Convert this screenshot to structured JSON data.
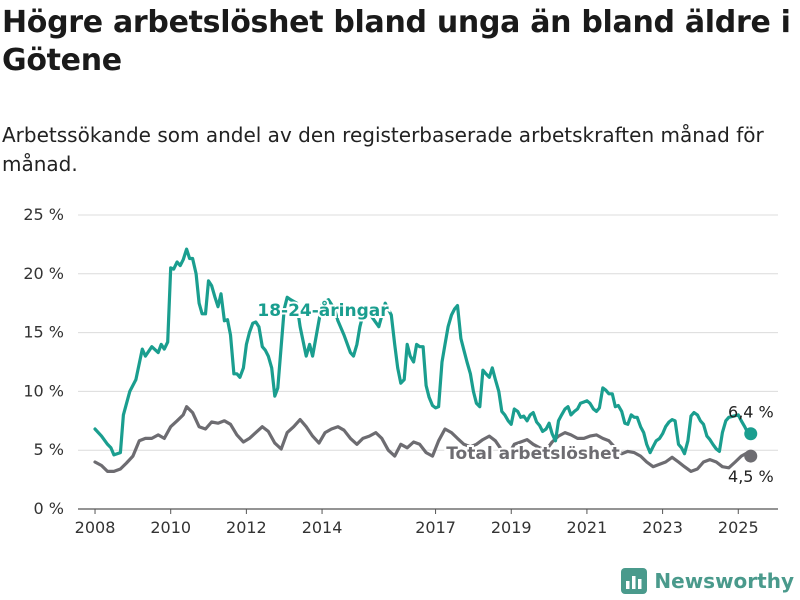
{
  "header": {
    "title": "Högre arbetslöshet bland unga än bland äldre i Götene",
    "subtitle": "Arbetssökande som andel av den registerbaserade arbetskraften månad för månad."
  },
  "brand": {
    "name": "Newsworthy",
    "icon": "bar-chart-logo-icon",
    "color": "#4a9a8c"
  },
  "chart_data": {
    "type": "line",
    "title": "Högre arbetslöshet bland unga än bland äldre i Götene",
    "subtitle": "Arbetssökande som andel av den registerbaserade arbetskraften månad för månad.",
    "ylim": [
      0,
      25
    ],
    "yticks": [
      0,
      5,
      10,
      15,
      20,
      25
    ],
    "ytick_labels": [
      "0 %",
      "5 %",
      "10 %",
      "15 %",
      "20 %",
      "25 %"
    ],
    "xtick_labels": [
      "2008",
      "2010",
      "2012",
      "2014",
      "2017",
      "2019",
      "2021",
      "2023",
      "2025"
    ],
    "xtick_years": [
      2008,
      2010,
      2012,
      2014,
      2017,
      2019,
      2021,
      2023,
      2025
    ],
    "grid": true,
    "legend": "inline labels",
    "x_unit": "year (decimal, monthly)",
    "series": [
      {
        "name": "18-24-åringar",
        "color": "#1a9e8f",
        "end_label": "6,4 %",
        "points": [
          [
            2008.0,
            6.8
          ],
          [
            2008.17,
            6.2
          ],
          [
            2008.33,
            5.5
          ],
          [
            2008.42,
            5.2
          ],
          [
            2008.5,
            4.6
          ],
          [
            2008.67,
            4.8
          ],
          [
            2008.75,
            8.0
          ],
          [
            2008.92,
            10.0
          ],
          [
            2009.08,
            11.0
          ],
          [
            2009.25,
            13.6
          ],
          [
            2009.33,
            13.0
          ],
          [
            2009.5,
            13.8
          ],
          [
            2009.67,
            13.3
          ],
          [
            2009.75,
            14.0
          ],
          [
            2009.83,
            13.6
          ],
          [
            2009.92,
            14.2
          ],
          [
            2010.0,
            20.5
          ],
          [
            2010.08,
            20.4
          ],
          [
            2010.17,
            21.0
          ],
          [
            2010.25,
            20.7
          ],
          [
            2010.33,
            21.2
          ],
          [
            2010.42,
            22.1
          ],
          [
            2010.5,
            21.3
          ],
          [
            2010.58,
            21.3
          ],
          [
            2010.67,
            20.0
          ],
          [
            2010.75,
            17.5
          ],
          [
            2010.83,
            16.6
          ],
          [
            2010.92,
            16.6
          ],
          [
            2011.0,
            19.4
          ],
          [
            2011.08,
            19.0
          ],
          [
            2011.17,
            18.0
          ],
          [
            2011.25,
            17.2
          ],
          [
            2011.33,
            18.3
          ],
          [
            2011.42,
            16.0
          ],
          [
            2011.5,
            16.1
          ],
          [
            2011.58,
            14.8
          ],
          [
            2011.67,
            11.5
          ],
          [
            2011.75,
            11.5
          ],
          [
            2011.83,
            11.2
          ],
          [
            2011.92,
            12.0
          ],
          [
            2012.0,
            14.0
          ],
          [
            2012.08,
            15.0
          ],
          [
            2012.17,
            15.8
          ],
          [
            2012.25,
            15.9
          ],
          [
            2012.33,
            15.5
          ],
          [
            2012.42,
            13.8
          ],
          [
            2012.5,
            13.5
          ],
          [
            2012.58,
            13.0
          ],
          [
            2012.67,
            12.0
          ],
          [
            2012.75,
            9.6
          ],
          [
            2012.83,
            10.3
          ],
          [
            2013.0,
            17.0
          ],
          [
            2013.08,
            18.0
          ],
          [
            2013.17,
            17.8
          ],
          [
            2013.33,
            17.5
          ],
          [
            2013.42,
            15.5
          ],
          [
            2013.58,
            13.0
          ],
          [
            2013.67,
            14.0
          ],
          [
            2013.75,
            13.0
          ],
          [
            2014.0,
            17.5
          ],
          [
            2014.17,
            17.8
          ],
          [
            2014.33,
            17.0
          ],
          [
            2014.42,
            16.0
          ],
          [
            2014.58,
            14.8
          ],
          [
            2014.75,
            13.3
          ],
          [
            2014.83,
            13.0
          ],
          [
            2014.92,
            14.0
          ],
          [
            2015.0,
            15.5
          ],
          [
            2015.08,
            16.5
          ],
          [
            2015.17,
            17.0
          ],
          [
            2015.5,
            15.5
          ],
          [
            2015.67,
            17.5
          ],
          [
            2015.83,
            16.5
          ],
          [
            2015.92,
            14.0
          ],
          [
            2016.0,
            12.0
          ],
          [
            2016.08,
            10.7
          ],
          [
            2016.17,
            11.0
          ],
          [
            2016.25,
            14.0
          ],
          [
            2016.33,
            13.0
          ],
          [
            2016.42,
            12.5
          ],
          [
            2016.5,
            14.0
          ],
          [
            2016.58,
            13.8
          ],
          [
            2016.67,
            13.8
          ],
          [
            2016.75,
            10.5
          ],
          [
            2016.83,
            9.5
          ],
          [
            2016.92,
            8.8
          ],
          [
            2017.0,
            8.6
          ],
          [
            2017.08,
            8.7
          ],
          [
            2017.17,
            12.5
          ],
          [
            2017.25,
            14.0
          ],
          [
            2017.33,
            15.5
          ],
          [
            2017.42,
            16.5
          ],
          [
            2017.5,
            17.0
          ],
          [
            2017.58,
            17.3
          ],
          [
            2017.67,
            14.5
          ],
          [
            2017.75,
            13.5
          ],
          [
            2017.83,
            12.5
          ],
          [
            2017.92,
            11.5
          ],
          [
            2018.0,
            10.0
          ],
          [
            2018.08,
            9.0
          ],
          [
            2018.17,
            8.7
          ],
          [
            2018.25,
            11.8
          ],
          [
            2018.33,
            11.5
          ],
          [
            2018.42,
            11.2
          ],
          [
            2018.5,
            12.0
          ],
          [
            2018.58,
            11.0
          ],
          [
            2018.67,
            10.0
          ],
          [
            2018.75,
            8.3
          ],
          [
            2018.83,
            8.0
          ],
          [
            2018.92,
            7.5
          ],
          [
            2019.0,
            7.2
          ],
          [
            2019.08,
            8.5
          ],
          [
            2019.17,
            8.3
          ],
          [
            2019.25,
            7.8
          ],
          [
            2019.33,
            7.9
          ],
          [
            2019.42,
            7.5
          ],
          [
            2019.5,
            8.0
          ],
          [
            2019.58,
            8.2
          ],
          [
            2019.67,
            7.4
          ],
          [
            2019.75,
            7.1
          ],
          [
            2019.83,
            6.6
          ],
          [
            2019.92,
            6.8
          ],
          [
            2020.0,
            7.3
          ],
          [
            2020.08,
            6.4
          ],
          [
            2020.17,
            5.8
          ],
          [
            2020.25,
            7.5
          ],
          [
            2020.33,
            8.0
          ],
          [
            2020.42,
            8.5
          ],
          [
            2020.5,
            8.7
          ],
          [
            2020.58,
            8.0
          ],
          [
            2020.67,
            8.3
          ],
          [
            2020.75,
            8.5
          ],
          [
            2020.83,
            9.0
          ],
          [
            2020.92,
            9.1
          ],
          [
            2021.0,
            9.2
          ],
          [
            2021.08,
            9.0
          ],
          [
            2021.17,
            8.5
          ],
          [
            2021.25,
            8.3
          ],
          [
            2021.33,
            8.6
          ],
          [
            2021.42,
            10.3
          ],
          [
            2021.5,
            10.1
          ],
          [
            2021.58,
            9.8
          ],
          [
            2021.67,
            9.8
          ],
          [
            2021.75,
            8.7
          ],
          [
            2021.83,
            8.8
          ],
          [
            2021.92,
            8.3
          ],
          [
            2022.0,
            7.3
          ],
          [
            2022.08,
            7.2
          ],
          [
            2022.17,
            8.0
          ],
          [
            2022.25,
            7.8
          ],
          [
            2022.33,
            7.8
          ],
          [
            2022.42,
            7.0
          ],
          [
            2022.5,
            6.5
          ],
          [
            2022.58,
            5.5
          ],
          [
            2022.67,
            4.8
          ],
          [
            2022.75,
            5.3
          ],
          [
            2022.83,
            5.8
          ],
          [
            2022.92,
            6.0
          ],
          [
            2023.0,
            6.4
          ],
          [
            2023.08,
            7.0
          ],
          [
            2023.17,
            7.4
          ],
          [
            2023.25,
            7.6
          ],
          [
            2023.33,
            7.5
          ],
          [
            2023.42,
            5.5
          ],
          [
            2023.5,
            5.2
          ],
          [
            2023.58,
            4.7
          ],
          [
            2023.67,
            5.8
          ],
          [
            2023.75,
            7.9
          ],
          [
            2023.83,
            8.2
          ],
          [
            2023.92,
            8.0
          ],
          [
            2024.0,
            7.5
          ],
          [
            2024.08,
            7.2
          ],
          [
            2024.17,
            6.2
          ],
          [
            2024.25,
            5.9
          ],
          [
            2024.33,
            5.5
          ],
          [
            2024.42,
            5.1
          ],
          [
            2024.5,
            4.9
          ],
          [
            2024.58,
            6.5
          ],
          [
            2024.67,
            7.5
          ],
          [
            2024.75,
            7.8
          ],
          [
            2025.0,
            8.0
          ],
          [
            2025.08,
            7.5
          ],
          [
            2025.17,
            7.0
          ],
          [
            2025.25,
            6.5
          ],
          [
            2025.33,
            6.4
          ]
        ]
      },
      {
        "name": "Total arbetslöshet",
        "color": "#6d6c71",
        "end_label": "4,5 %",
        "points": [
          [
            2008.0,
            4.0
          ],
          [
            2008.17,
            3.7
          ],
          [
            2008.33,
            3.2
          ],
          [
            2008.5,
            3.2
          ],
          [
            2008.67,
            3.4
          ],
          [
            2008.83,
            3.9
          ],
          [
            2009.0,
            4.5
          ],
          [
            2009.17,
            5.8
          ],
          [
            2009.33,
            6.0
          ],
          [
            2009.5,
            6.0
          ],
          [
            2009.67,
            6.3
          ],
          [
            2009.83,
            6.0
          ],
          [
            2010.0,
            7.0
          ],
          [
            2010.17,
            7.5
          ],
          [
            2010.33,
            8.0
          ],
          [
            2010.42,
            8.7
          ],
          [
            2010.58,
            8.2
          ],
          [
            2010.75,
            7.0
          ],
          [
            2010.92,
            6.8
          ],
          [
            2011.08,
            7.4
          ],
          [
            2011.25,
            7.3
          ],
          [
            2011.42,
            7.5
          ],
          [
            2011.58,
            7.2
          ],
          [
            2011.75,
            6.3
          ],
          [
            2011.92,
            5.7
          ],
          [
            2012.08,
            6.0
          ],
          [
            2012.25,
            6.5
          ],
          [
            2012.42,
            7.0
          ],
          [
            2012.58,
            6.6
          ],
          [
            2012.75,
            5.6
          ],
          [
            2012.92,
            5.1
          ],
          [
            2013.08,
            6.5
          ],
          [
            2013.25,
            7.0
          ],
          [
            2013.42,
            7.6
          ],
          [
            2013.58,
            7.0
          ],
          [
            2013.75,
            6.2
          ],
          [
            2013.92,
            5.6
          ],
          [
            2014.08,
            6.5
          ],
          [
            2014.25,
            6.8
          ],
          [
            2014.42,
            7.0
          ],
          [
            2014.58,
            6.7
          ],
          [
            2014.75,
            6.0
          ],
          [
            2014.92,
            5.5
          ],
          [
            2015.08,
            6.0
          ],
          [
            2015.25,
            6.2
          ],
          [
            2015.42,
            6.5
          ],
          [
            2015.58,
            6.0
          ],
          [
            2015.75,
            5.0
          ],
          [
            2015.92,
            4.5
          ],
          [
            2016.08,
            5.5
          ],
          [
            2016.25,
            5.2
          ],
          [
            2016.42,
            5.7
          ],
          [
            2016.58,
            5.5
          ],
          [
            2016.75,
            4.8
          ],
          [
            2016.92,
            4.5
          ],
          [
            2017.08,
            5.8
          ],
          [
            2017.25,
            6.8
          ],
          [
            2017.42,
            6.5
          ],
          [
            2017.58,
            6.0
          ],
          [
            2017.75,
            5.5
          ],
          [
            2017.92,
            5.3
          ],
          [
            2018.08,
            5.5
          ],
          [
            2018.25,
            5.9
          ],
          [
            2018.42,
            6.2
          ],
          [
            2018.58,
            5.8
          ],
          [
            2018.75,
            5.0
          ],
          [
            2018.92,
            4.6
          ],
          [
            2019.08,
            5.5
          ],
          [
            2019.25,
            5.7
          ],
          [
            2019.42,
            5.9
          ],
          [
            2019.58,
            5.5
          ],
          [
            2019.75,
            5.2
          ],
          [
            2019.92,
            5.0
          ],
          [
            2020.08,
            5.7
          ],
          [
            2020.25,
            6.2
          ],
          [
            2020.42,
            6.5
          ],
          [
            2020.58,
            6.3
          ],
          [
            2020.75,
            6.0
          ],
          [
            2020.92,
            6.0
          ],
          [
            2021.08,
            6.2
          ],
          [
            2021.25,
            6.3
          ],
          [
            2021.42,
            6.0
          ],
          [
            2021.58,
            5.8
          ],
          [
            2021.75,
            5.2
          ],
          [
            2021.92,
            4.7
          ],
          [
            2022.08,
            4.9
          ],
          [
            2022.25,
            4.8
          ],
          [
            2022.42,
            4.5
          ],
          [
            2022.58,
            4.0
          ],
          [
            2022.75,
            3.6
          ],
          [
            2022.92,
            3.8
          ],
          [
            2023.08,
            4.0
          ],
          [
            2023.25,
            4.4
          ],
          [
            2023.42,
            4.0
          ],
          [
            2023.58,
            3.6
          ],
          [
            2023.75,
            3.2
          ],
          [
            2023.92,
            3.4
          ],
          [
            2024.08,
            4.0
          ],
          [
            2024.25,
            4.2
          ],
          [
            2024.42,
            4.0
          ],
          [
            2024.58,
            3.6
          ],
          [
            2024.75,
            3.5
          ],
          [
            2024.92,
            4.0
          ],
          [
            2025.08,
            4.5
          ],
          [
            2025.25,
            4.8
          ],
          [
            2025.33,
            4.5
          ]
        ]
      }
    ]
  }
}
